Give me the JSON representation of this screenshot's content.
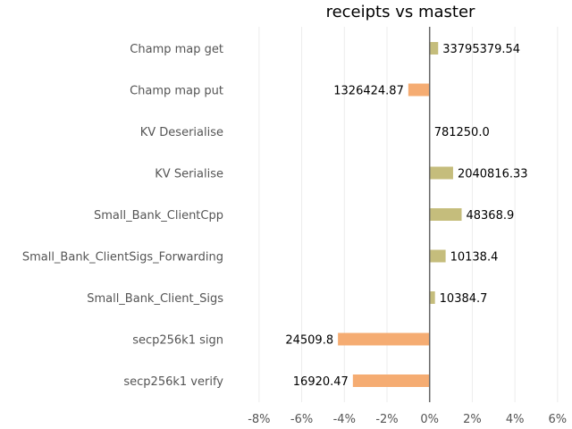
{
  "chart_data": {
    "type": "bar",
    "orientation": "horizontal",
    "title": "receipts vs master",
    "xlabel": "",
    "ylabel": "",
    "xlim": [
      -9,
      6.3
    ],
    "xticks": [
      -8,
      -6,
      -4,
      -2,
      0,
      2,
      4,
      6
    ],
    "xtick_labels": [
      "-8%",
      "-6%",
      "-4%",
      "-2%",
      "0%",
      "2%",
      "4%",
      "6%"
    ],
    "grid": true,
    "categories": [
      "Champ map get",
      "Champ map put",
      "KV Deserialise",
      "KV Serialise",
      "Small_Bank_ClientCpp",
      "Small_Bank_ClientSigs_Forwarding",
      "Small_Bank_Client_Sigs",
      "secp256k1 sign",
      "secp256k1 verify"
    ],
    "values": [
      0.4,
      -1.0,
      0.0,
      1.1,
      1.5,
      0.75,
      0.25,
      -4.3,
      -3.6
    ],
    "data_labels": [
      "33795379.54",
      "1326424.87",
      "781250.0",
      "2040816.33",
      "48368.9",
      "10138.4",
      "10384.7",
      "24509.8",
      "16920.47"
    ],
    "colors": {
      "positive": "#c5bd7c",
      "negative": "#f5ac72"
    }
  }
}
